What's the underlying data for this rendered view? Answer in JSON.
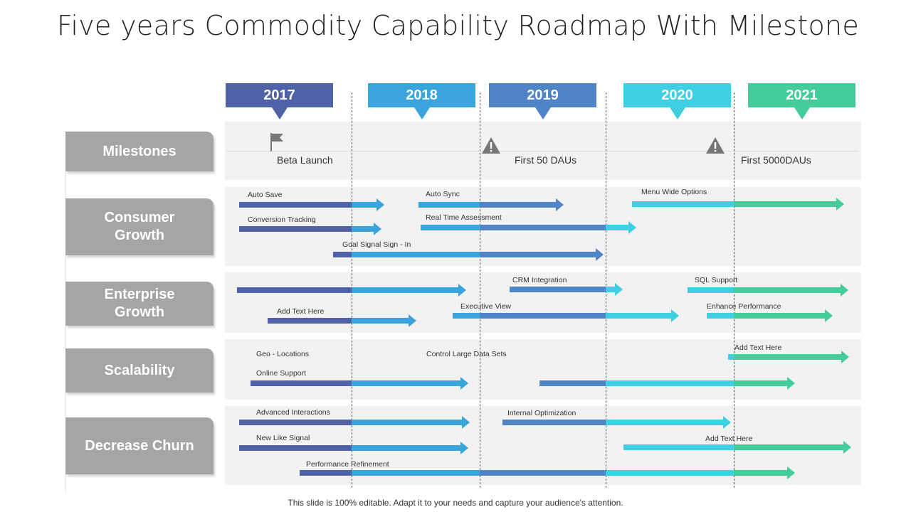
{
  "title": "Five years Commodity Capability Roadmap With Milestone",
  "footer": "This slide is 100% editable. Adapt it to your needs and capture your audience's attention.",
  "colors": {
    "c2017": "#4f62a8",
    "c2018": "#3aa4dc",
    "c2019": "#4f84c6",
    "c2020": "#3ecfe2",
    "c2021": "#44cc9a",
    "rowlabel": "#a5a5a5",
    "band": "#f2f2f2"
  },
  "years": [
    "2017",
    "2018",
    "2019",
    "2020",
    "2021"
  ],
  "rows": {
    "milestones": "Milestones",
    "consumer": "Consumer Growth",
    "enterprise": "Enterprise Growth",
    "scalability": "Scalability",
    "churn": "Decrease Churn"
  },
  "milestones": [
    {
      "label": "Beta Launch",
      "icon": "flag-icon"
    },
    {
      "label": "First 50 DAUs",
      "icon": "warning-icon"
    },
    {
      "label": "First 5000DAUs",
      "icon": "warning-icon"
    }
  ],
  "tasks": {
    "auto_save": "Auto Save",
    "conversion_tracking": "Conversion Tracking",
    "auto_sync": "Auto Sync",
    "real_time_assessment": "Real Time  Assessment",
    "goal_signal": "Goal Signal Sign - In",
    "menu_wide_options": "Menu Wide Options",
    "crm_integration": "CRM  Integration",
    "sql_support": "SQL Support",
    "add_text_here_1": "Add Text Here",
    "executive_view": "Executive View",
    "enhance_performance": "Enhance Performance",
    "geo_locations": "Geo - Locations",
    "control_large_data_sets": "Control Large Data Sets",
    "add_text_here_2": "Add Text Here",
    "online_support": "Online Support",
    "advanced_interactions": "Advanced Interactions",
    "internal_optimization": "Internal Optimization",
    "new_like_signal": "New Like Signal",
    "add_text_here_3": "Add Text Here",
    "performance_refinement": "Performance Refinement"
  }
}
